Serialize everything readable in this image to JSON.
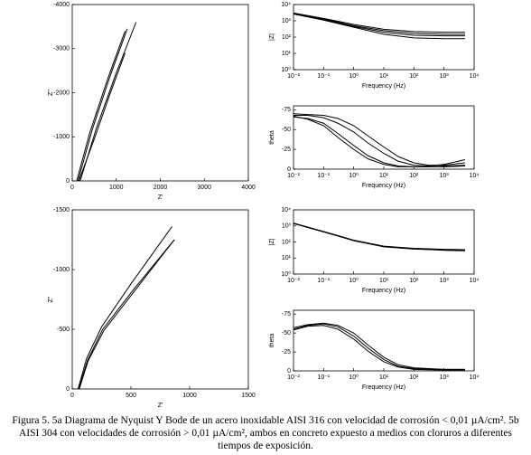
{
  "chart_data": [
    {
      "type": "line",
      "xlabel": "Z'",
      "ylabel": "Z''",
      "xlim": [
        0,
        4000
      ],
      "ylim": [
        0,
        -4000
      ],
      "xticks": [
        0,
        1000,
        2000,
        3000,
        4000
      ],
      "yticks": [
        0,
        -1000,
        -2000,
        -3000,
        -4000
      ],
      "series": [
        {
          "color": "#000000",
          "x": [
            100,
            400,
            800,
            1200
          ],
          "values": [
            0,
            -1100,
            -2300,
            -3400
          ]
        },
        {
          "color": "#000000",
          "x": [
            130,
            450,
            850,
            1250
          ],
          "values": [
            0,
            -1150,
            -2350,
            -3450
          ]
        },
        {
          "color": "#000000",
          "x": [
            180,
            550,
            1000,
            1450
          ],
          "values": [
            0,
            -1200,
            -2450,
            -3600
          ]
        },
        {
          "color": "#000000",
          "x": [
            150,
            500,
            850,
            1200
          ],
          "values": [
            0,
            -950,
            -1950,
            -2900
          ]
        }
      ]
    },
    {
      "type": "line",
      "xlabel": "Frequency (Hz)",
      "ylabel": "|Z|",
      "log_x": true,
      "log_y": true,
      "xlim": [
        0.01,
        10000
      ],
      "ylim": [
        1,
        10000
      ],
      "xticks": [
        {
          "value": 0.01,
          "label": "10⁻²"
        },
        {
          "value": 0.1,
          "label": "10⁻¹"
        },
        {
          "value": 1,
          "label": "10⁰"
        },
        {
          "value": 10,
          "label": "10¹"
        },
        {
          "value": 100,
          "label": "10²"
        },
        {
          "value": 1000,
          "label": "10³"
        },
        {
          "value": 10000,
          "label": "10⁴"
        }
      ],
      "yticks": [
        {
          "value": 1,
          "label": "10⁰"
        },
        {
          "value": 10,
          "label": "10¹"
        },
        {
          "value": 100,
          "label": "10²"
        },
        {
          "value": 1000,
          "label": "10³"
        },
        {
          "value": 10000,
          "label": "10⁴"
        }
      ],
      "series": [
        {
          "color": "#000000",
          "x": [
            0.01,
            0.1,
            1,
            10,
            100,
            1000,
            5000
          ],
          "values": [
            3000,
            1400,
            600,
            300,
            220,
            200,
            200
          ]
        },
        {
          "color": "#000000",
          "x": [
            0.01,
            0.1,
            1,
            10,
            100,
            1000,
            5000
          ],
          "values": [
            2800,
            1300,
            500,
            250,
            170,
            150,
            150
          ]
        },
        {
          "color": "#000000",
          "x": [
            0.01,
            0.1,
            1,
            10,
            100,
            1000,
            5000
          ],
          "values": [
            2700,
            1200,
            450,
            200,
            130,
            120,
            120
          ]
        },
        {
          "color": "#000000",
          "x": [
            0.01,
            0.1,
            1,
            10,
            100,
            1000,
            5000
          ],
          "values": [
            2600,
            1100,
            400,
            150,
            90,
            80,
            80
          ]
        }
      ]
    },
    {
      "type": "line",
      "xlabel": "Frequency (Hz)",
      "ylabel": "theta",
      "log_x": true,
      "xlim": [
        0.01,
        10000
      ],
      "ylim": [
        0,
        -80
      ],
      "xticks": [
        {
          "value": 0.01,
          "label": "10⁻²"
        },
        {
          "value": 0.1,
          "label": "10⁻¹"
        },
        {
          "value": 1,
          "label": "10⁰"
        },
        {
          "value": 10,
          "label": "10¹"
        },
        {
          "value": 100,
          "label": "10²"
        },
        {
          "value": 1000,
          "label": "10³"
        },
        {
          "value": 10000,
          "label": "10⁴"
        }
      ],
      "yticks": [
        0,
        -25,
        -50,
        -75
      ],
      "series": [
        {
          "color": "#000000",
          "x": [
            0.01,
            0.03,
            0.1,
            0.3,
            1,
            3,
            10,
            30,
            100,
            300,
            1000,
            5000
          ],
          "values": [
            -68,
            -68,
            -65,
            -58,
            -47,
            -33,
            -20,
            -10,
            -5,
            -4,
            -6,
            -12
          ]
        },
        {
          "color": "#000000",
          "x": [
            0.01,
            0.03,
            0.1,
            0.3,
            1,
            3,
            10,
            30,
            100,
            300,
            1000,
            5000
          ],
          "values": [
            -66,
            -64,
            -58,
            -45,
            -30,
            -17,
            -8,
            -4,
            -3,
            -3,
            -4,
            -5
          ]
        },
        {
          "color": "#000000",
          "x": [
            0.01,
            0.03,
            0.1,
            0.3,
            1,
            3,
            10,
            30,
            100,
            300,
            1000,
            5000
          ],
          "values": [
            -67,
            -63,
            -55,
            -40,
            -25,
            -13,
            -6,
            -3,
            -3,
            -3,
            -3,
            -4
          ]
        },
        {
          "color": "#000000",
          "x": [
            0.01,
            0.03,
            0.1,
            0.3,
            1,
            3,
            10,
            30,
            100,
            300,
            1000,
            5000
          ],
          "values": [
            -70,
            -69,
            -68,
            -64,
            -55,
            -42,
            -28,
            -16,
            -8,
            -5,
            -5,
            -8
          ]
        }
      ]
    },
    {
      "type": "line",
      "xlabel": "Z'",
      "ylabel": "Z''",
      "xlim": [
        0,
        1500
      ],
      "ylim": [
        0,
        -1500
      ],
      "xticks": [
        0,
        500,
        1000,
        1500
      ],
      "yticks": [
        0,
        -500,
        -1000,
        -1500
      ],
      "series": [
        {
          "color": "#000000",
          "x": [
            50,
            120,
            250,
            500,
            850
          ],
          "values": [
            0,
            -250,
            -520,
            -880,
            -1360
          ]
        },
        {
          "color": "#000000",
          "x": [
            55,
            130,
            260,
            520,
            870
          ],
          "values": [
            0,
            -240,
            -500,
            -830,
            -1250
          ]
        },
        {
          "color": "#000000",
          "x": [
            60,
            135,
            270,
            530,
            870
          ],
          "values": [
            0,
            -235,
            -490,
            -820,
            -1250
          ]
        }
      ]
    },
    {
      "type": "line",
      "xlabel": "Frequency (Hz)",
      "ylabel": "|Z|",
      "log_x": true,
      "log_y": true,
      "xlim": [
        0.01,
        10000
      ],
      "ylim": [
        1,
        10000
      ],
      "xticks": [
        {
          "value": 0.01,
          "label": "10⁻²"
        },
        {
          "value": 0.1,
          "label": "10⁻¹"
        },
        {
          "value": 1,
          "label": "10⁰"
        },
        {
          "value": 10,
          "label": "10¹"
        },
        {
          "value": 100,
          "label": "10²"
        },
        {
          "value": 1000,
          "label": "10³"
        },
        {
          "value": 10000,
          "label": "10⁴"
        }
      ],
      "yticks": [
        {
          "value": 1,
          "label": "10⁰"
        },
        {
          "value": 10,
          "label": "10¹"
        },
        {
          "value": 100,
          "label": "10²"
        },
        {
          "value": 1000,
          "label": "10³"
        },
        {
          "value": 10000,
          "label": "10⁴"
        }
      ],
      "series": [
        {
          "color": "#000000",
          "x": [
            0.01,
            0.1,
            1,
            10,
            100,
            1000,
            5000
          ],
          "values": [
            1500,
            450,
            130,
            55,
            40,
            35,
            33
          ]
        },
        {
          "color": "#000000",
          "x": [
            0.01,
            0.1,
            1,
            10,
            100,
            1000,
            5000
          ],
          "values": [
            1400,
            420,
            120,
            50,
            36,
            32,
            30
          ]
        },
        {
          "color": "#000000",
          "x": [
            0.01,
            0.1,
            1,
            10,
            100,
            1000,
            5000
          ],
          "values": [
            1450,
            430,
            125,
            52,
            38,
            30,
            28
          ]
        }
      ]
    },
    {
      "type": "line",
      "xlabel": "Frequency (Hz)",
      "ylabel": "theta",
      "log_x": true,
      "xlim": [
        0.01,
        10000
      ],
      "ylim": [
        0,
        -80
      ],
      "xticks": [
        {
          "value": 0.01,
          "label": "10⁻²"
        },
        {
          "value": 0.1,
          "label": "10⁻¹"
        },
        {
          "value": 1,
          "label": "10⁰"
        },
        {
          "value": 10,
          "label": "10¹"
        },
        {
          "value": 100,
          "label": "10²"
        },
        {
          "value": 1000,
          "label": "10³"
        },
        {
          "value": 10000,
          "label": "10⁴"
        }
      ],
      "yticks": [
        0,
        -25,
        -50,
        -75
      ],
      "series": [
        {
          "color": "#000000",
          "x": [
            0.01,
            0.03,
            0.1,
            0.3,
            1,
            3,
            10,
            30,
            100,
            1000,
            5000
          ],
          "values": [
            -55,
            -60,
            -62,
            -58,
            -46,
            -30,
            -15,
            -6,
            -3,
            -2,
            -2
          ]
        },
        {
          "color": "#000000",
          "x": [
            0.01,
            0.03,
            0.1,
            0.3,
            1,
            3,
            10,
            30,
            100,
            1000,
            5000
          ],
          "values": [
            -57,
            -61,
            -63,
            -60,
            -50,
            -34,
            -18,
            -8,
            -4,
            -2,
            -2
          ]
        },
        {
          "color": "#000000",
          "x": [
            0.01,
            0.03,
            0.1,
            0.3,
            1,
            3,
            10,
            30,
            100,
            1000,
            5000
          ],
          "values": [
            -54,
            -59,
            -60,
            -55,
            -42,
            -26,
            -12,
            -5,
            -2,
            -1,
            -1
          ]
        }
      ]
    }
  ],
  "caption": "Figura 5. 5a Diagrama de Nyquist Y Bode de un acero inoxidable AISI 316 con velocidad de corrosión < 0,01 µA/cm². 5b AISI 304 con velocidades de corrosión > 0,01 µA/cm², ambos en concreto expuesto a medios con cloruros a diferentes tiempos de exposición."
}
